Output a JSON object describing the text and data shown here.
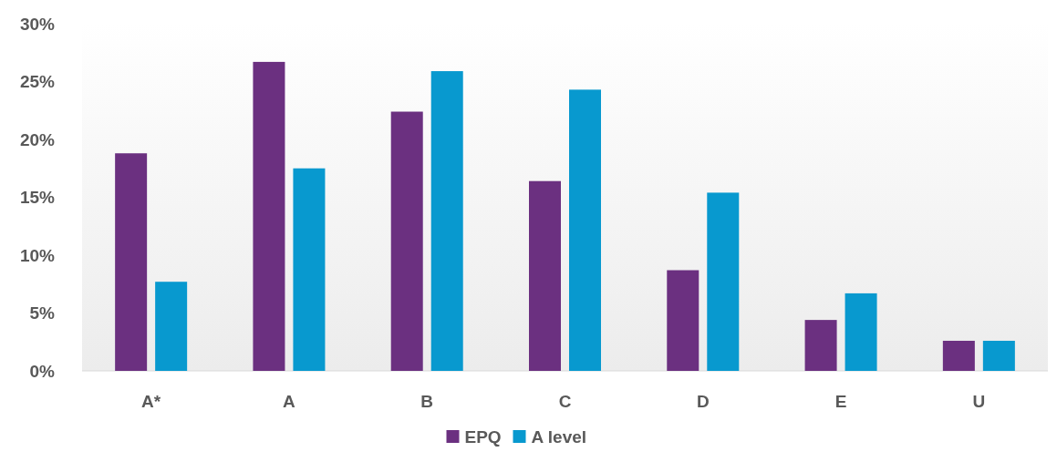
{
  "chart_data": {
    "type": "bar",
    "categories": [
      "A*",
      "A",
      "B",
      "C",
      "D",
      "E",
      "U"
    ],
    "series": [
      {
        "name": "EPQ",
        "color": "#6b3080",
        "values": [
          18.8,
          26.7,
          22.4,
          16.4,
          8.7,
          4.4,
          2.6
        ]
      },
      {
        "name": "A level",
        "color": "#0899cf",
        "values": [
          7.7,
          17.5,
          25.9,
          24.3,
          15.4,
          6.7,
          2.6
        ]
      }
    ],
    "ylim": [
      0,
      30
    ],
    "yticks": [
      {
        "value": 0,
        "label": "0%"
      },
      {
        "value": 5,
        "label": "5%"
      },
      {
        "value": 10,
        "label": "10%"
      },
      {
        "value": 15,
        "label": "15%"
      },
      {
        "value": 20,
        "label": "20%"
      },
      {
        "value": 25,
        "label": "25%"
      },
      {
        "value": 30,
        "label": "30%"
      }
    ],
    "grid": false,
    "legend": "bottom"
  }
}
